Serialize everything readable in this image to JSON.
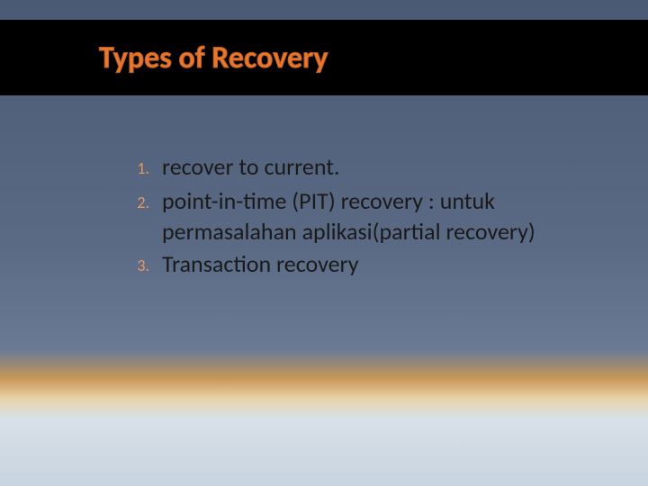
{
  "slide": {
    "title": "Types of Recovery",
    "title_color": "#e87830",
    "title_stroke": "#b85a20",
    "title_fontsize": 34,
    "title_band_bg": "#000000",
    "body_fontsize": 26,
    "marker_color": "#e8985a",
    "marker_fontsize": 18,
    "background_gradient": [
      "#4a5a74",
      "#5a6a84",
      "#6a7a94",
      "#c89858",
      "#e8d4a8",
      "#d8e0e8",
      "#c8d4e0"
    ],
    "items": [
      {
        "marker": "1.",
        "text": "recover to current."
      },
      {
        "marker": "2.",
        "text": "point-in-time (PIT) recovery : untuk permasalahan aplikasi(partial recovery)"
      },
      {
        "marker": "3.",
        "text": "Transaction recovery"
      }
    ]
  }
}
